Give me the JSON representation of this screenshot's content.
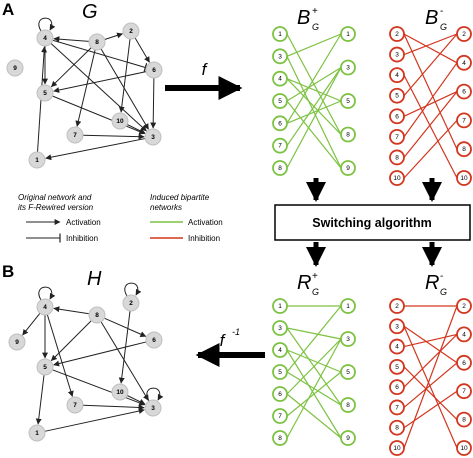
{
  "panel_labels": {
    "a": "A",
    "b": "B"
  },
  "graph_titles": {
    "g": "G",
    "h": "H"
  },
  "bipartite_titles": {
    "b_plus": {
      "main": "B",
      "sup": "+",
      "sub": "G"
    },
    "b_minus": {
      "main": "B",
      "sup": "-",
      "sub": "G"
    },
    "r_plus": {
      "main": "R",
      "sup": "+",
      "sub": "G"
    },
    "r_minus": {
      "main": "R",
      "sup": "-",
      "sub": "G"
    }
  },
  "function_labels": {
    "f": "f",
    "f_inv": "f",
    "f_inv_sup": "-1"
  },
  "switch_box_label": "Switching algorithm",
  "legend": {
    "left_heading_1": "Original network and",
    "left_heading_2": "its F-Rewired version",
    "left_items": [
      "Activation",
      "Inhibition"
    ],
    "right_heading_1": "Induced bipartite",
    "right_heading_2": "networks",
    "right_items": [
      "Activation",
      "Inhibition"
    ]
  },
  "colors": {
    "activation": "#7dc242",
    "inhibition": "#d2361e",
    "node_fill": "#d8d8d8",
    "edge": "#222222"
  },
  "graph_nodes": [
    "1",
    "2",
    "3",
    "4",
    "5",
    "6",
    "7",
    "8",
    "9",
    "10"
  ],
  "graph_g_edges": [
    {
      "from": "4",
      "to": "4",
      "type": "activation"
    },
    {
      "from": "8",
      "to": "4",
      "type": "activation"
    },
    {
      "from": "4",
      "to": "5",
      "type": "activation"
    },
    {
      "from": "4",
      "to": "3",
      "type": "activation"
    },
    {
      "from": "4",
      "to": "6",
      "type": "inhibition"
    },
    {
      "from": "8",
      "to": "2",
      "type": "activation"
    },
    {
      "from": "8",
      "to": "5",
      "type": "activation"
    },
    {
      "from": "8",
      "to": "7",
      "type": "activation"
    },
    {
      "from": "8",
      "to": "3",
      "type": "activation"
    },
    {
      "from": "2",
      "to": "6",
      "type": "activation"
    },
    {
      "from": "2",
      "to": "10",
      "type": "activation"
    },
    {
      "from": "6",
      "to": "5",
      "type": "activation"
    },
    {
      "from": "6",
      "to": "3",
      "type": "activation"
    },
    {
      "from": "5",
      "to": "3",
      "type": "activation"
    },
    {
      "from": "7",
      "to": "3",
      "type": "activation"
    },
    {
      "from": "10",
      "to": "3",
      "type": "activation"
    },
    {
      "from": "3",
      "to": "1",
      "type": "activation"
    },
    {
      "from": "1",
      "to": "4",
      "type": "activation"
    }
  ],
  "graph_h_edges": [
    {
      "from": "4",
      "to": "4",
      "type": "activation"
    },
    {
      "from": "2",
      "to": "2",
      "type": "activation"
    },
    {
      "from": "3",
      "to": "3",
      "type": "activation"
    },
    {
      "from": "8",
      "to": "4",
      "type": "activation"
    },
    {
      "from": "4",
      "to": "9",
      "type": "activation"
    },
    {
      "from": "4",
      "to": "5",
      "type": "activation"
    },
    {
      "from": "4",
      "to": "7",
      "type": "activation"
    },
    {
      "from": "8",
      "to": "5",
      "type": "activation"
    },
    {
      "from": "8",
      "to": "6",
      "type": "activation"
    },
    {
      "from": "8",
      "to": "3",
      "type": "activation"
    },
    {
      "from": "2",
      "to": "10",
      "type": "activation"
    },
    {
      "from": "6",
      "to": "5",
      "type": "activation"
    },
    {
      "from": "5",
      "to": "3",
      "type": "activation"
    },
    {
      "from": "7",
      "to": "3",
      "type": "activation"
    },
    {
      "from": "10",
      "to": "3",
      "type": "activation"
    },
    {
      "from": "1",
      "to": "3",
      "type": "activation"
    },
    {
      "from": "5",
      "to": "1",
      "type": "activation"
    }
  ],
  "bp_plus_left": [
    "1",
    "3",
    "4",
    "5",
    "6",
    "7",
    "8"
  ],
  "bp_plus_right": [
    "1",
    "3",
    "5",
    "8",
    "9"
  ],
  "bp_minus_left": [
    "2",
    "3",
    "4",
    "5",
    "6",
    "7",
    "8",
    "10"
  ],
  "bp_minus_right": [
    "2",
    "4",
    "6",
    "7",
    "8",
    "10"
  ],
  "b_plus_edges": [
    [
      "1",
      "8"
    ],
    [
      "3",
      "1"
    ],
    [
      "3",
      "9"
    ],
    [
      "4",
      "5"
    ],
    [
      "4",
      "8"
    ],
    [
      "5",
      "3"
    ],
    [
      "5",
      "9"
    ],
    [
      "6",
      "1"
    ],
    [
      "6",
      "5"
    ],
    [
      "7",
      "3"
    ],
    [
      "8",
      "3"
    ]
  ],
  "b_minus_edges": [
    [
      "2",
      "4"
    ],
    [
      "2",
      "8"
    ],
    [
      "3",
      "2"
    ],
    [
      "4",
      "10"
    ],
    [
      "5",
      "2"
    ],
    [
      "6",
      "6"
    ],
    [
      "7",
      "4"
    ],
    [
      "8",
      "6"
    ],
    [
      "10",
      "7"
    ]
  ],
  "r_plus_edges": [
    [
      "1",
      "1"
    ],
    [
      "3",
      "3"
    ],
    [
      "3",
      "8"
    ],
    [
      "4",
      "5"
    ],
    [
      "4",
      "9"
    ],
    [
      "5",
      "1"
    ],
    [
      "5",
      "8"
    ],
    [
      "6",
      "3"
    ],
    [
      "6",
      "9"
    ],
    [
      "7",
      "5"
    ],
    [
      "8",
      "3"
    ]
  ],
  "r_minus_edges": [
    [
      "2",
      "2"
    ],
    [
      "3",
      "6"
    ],
    [
      "3",
      "10"
    ],
    [
      "4",
      "4"
    ],
    [
      "5",
      "8"
    ],
    [
      "6",
      "4"
    ],
    [
      "7",
      "6"
    ],
    [
      "8",
      "7"
    ],
    [
      "10",
      "2"
    ]
  ]
}
